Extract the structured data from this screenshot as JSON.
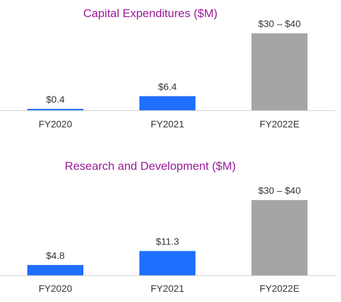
{
  "colors": {
    "title": "#9a1a9a",
    "bar_actual": "#1f6fff",
    "bar_estimate": "#a5a5a5",
    "baseline": "#d0d0d0",
    "text": "#333333"
  },
  "chart_data": [
    {
      "type": "bar",
      "title": "Capital Expenditures ($M)",
      "categories": [
        "FY2020",
        "FY2021",
        "FY2022E"
      ],
      "values": [
        0.4,
        6.4,
        35
      ],
      "range": [
        null,
        null,
        [
          30,
          40
        ]
      ],
      "labels": [
        "$0.4",
        "$6.4",
        "$30 – $40"
      ],
      "estimate": [
        false,
        false,
        true
      ],
      "ylim": [
        0,
        38
      ],
      "grid": false,
      "legend": "none"
    },
    {
      "type": "bar",
      "title": "Research and Development ($M)",
      "categories": [
        "FY2020",
        "FY2021",
        "FY2022E"
      ],
      "values": [
        4.8,
        11.3,
        35
      ],
      "range": [
        null,
        null,
        [
          30,
          40
        ]
      ],
      "labels": [
        "$4.8",
        "$11.3",
        "$30 – $40"
      ],
      "estimate": [
        false,
        false,
        true
      ],
      "ylim": [
        0,
        39.5
      ],
      "grid": false,
      "legend": "none"
    }
  ]
}
